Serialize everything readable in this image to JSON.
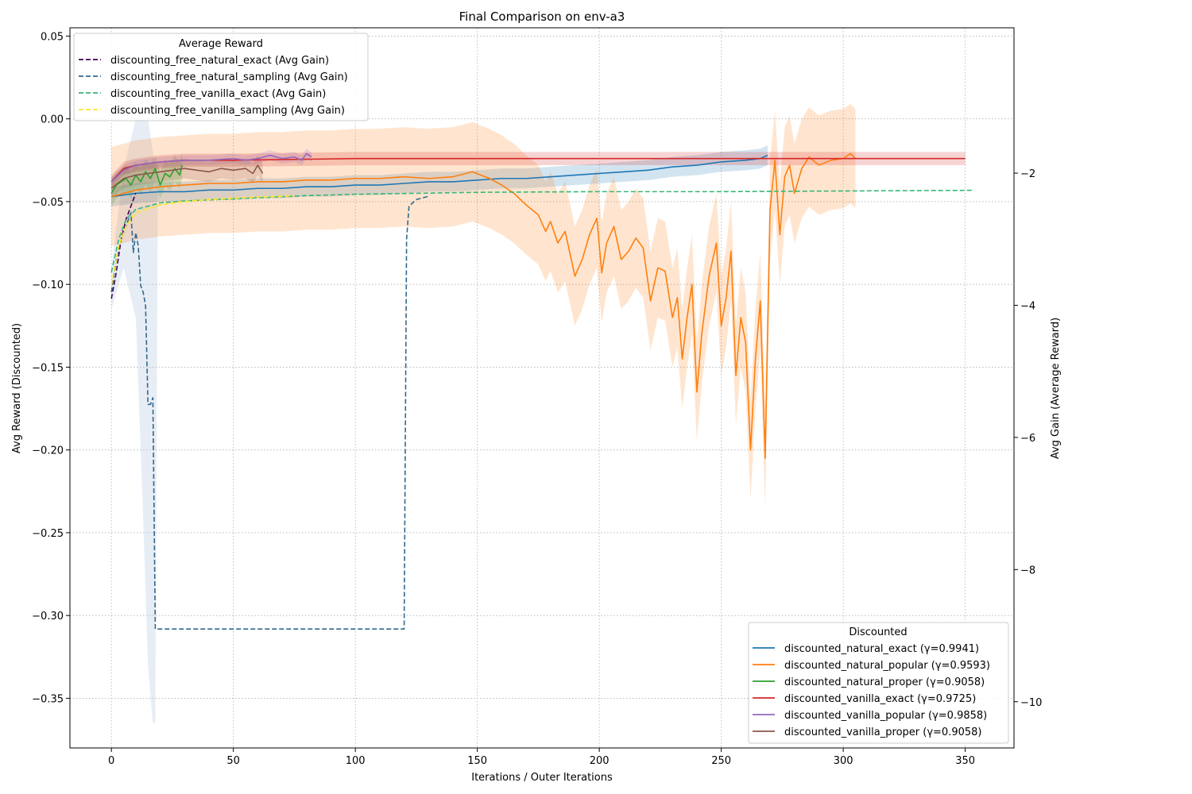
{
  "chart_data": {
    "type": "line",
    "title": "Final Comparison on env-a3",
    "xlabel": "Iterations / Outer Iterations",
    "ylabel_left": "Avg Reward (Discounted)",
    "ylabel_right": "Avg Gain (Average Reward)",
    "xlim": [
      -17,
      370
    ],
    "ylim_left": [
      -0.38,
      0.055
    ],
    "ylim_right": [
      -10.7,
      0.2
    ],
    "x_ticks": [
      0,
      50,
      100,
      150,
      200,
      250,
      300,
      350
    ],
    "y_ticks_left": [
      0.05,
      0.0,
      -0.05,
      -0.1,
      -0.15,
      -0.2,
      -0.25,
      -0.3,
      -0.35
    ],
    "y_tick_labels_left": [
      "0.05",
      "0.00",
      "−0.05",
      "−0.10",
      "−0.15",
      "−0.20",
      "−0.25",
      "−0.30",
      "−0.35"
    ],
    "y_ticks_right": [
      -2,
      -4,
      -6,
      -8,
      -10
    ],
    "y_tick_labels_right": [
      "−2",
      "−4",
      "−6",
      "−8",
      "−10"
    ],
    "x_tick_labels": [
      "0",
      "50",
      "100",
      "150",
      "200",
      "250",
      "300",
      "350"
    ],
    "grid": true,
    "legend_discounted": {
      "title": "Discounted",
      "placement": "lower-right",
      "entries": [
        "discounted_natural_exact (γ=0.9941)",
        "discounted_natural_popular (γ=0.9593)",
        "discounted_natural_proper (γ=0.9058)",
        "discounted_vanilla_exact (γ=0.9725)",
        "discounted_vanilla_popular (γ=0.9858)",
        "discounted_vanilla_proper (γ=0.9058)"
      ]
    },
    "legend_average": {
      "title": "Average Reward",
      "placement": "upper-left",
      "entries": [
        "discounting_free_natural_exact (Avg Gain)",
        "discounting_free_natural_sampling (Avg Gain)",
        "discounting_free_vanilla_exact (Avg Gain)",
        "discounting_free_vanilla_sampling (Avg Gain)"
      ]
    },
    "series": [
      {
        "axis": "left",
        "color": "#1f77b4",
        "style": "solid",
        "band": 0.006,
        "points": [
          [
            0,
            -0.047
          ],
          [
            5,
            -0.046
          ],
          [
            10,
            -0.045
          ],
          [
            20,
            -0.044
          ],
          [
            30,
            -0.044
          ],
          [
            40,
            -0.043
          ],
          [
            50,
            -0.043
          ],
          [
            60,
            -0.042
          ],
          [
            70,
            -0.042
          ],
          [
            80,
            -0.041
          ],
          [
            90,
            -0.041
          ],
          [
            100,
            -0.04
          ],
          [
            110,
            -0.04
          ],
          [
            120,
            -0.039
          ],
          [
            130,
            -0.038
          ],
          [
            140,
            -0.038
          ],
          [
            150,
            -0.037
          ],
          [
            160,
            -0.036
          ],
          [
            170,
            -0.036
          ],
          [
            180,
            -0.035
          ],
          [
            190,
            -0.034
          ],
          [
            200,
            -0.033
          ],
          [
            210,
            -0.032
          ],
          [
            220,
            -0.031
          ],
          [
            230,
            -0.029
          ],
          [
            240,
            -0.028
          ],
          [
            250,
            -0.026
          ],
          [
            260,
            -0.025
          ],
          [
            266,
            -0.024
          ],
          [
            269,
            -0.022
          ]
        ]
      },
      {
        "axis": "left",
        "color": "#ff7f0e",
        "style": "solid",
        "band": 0.03,
        "points": [
          [
            0,
            -0.047
          ],
          [
            10,
            -0.043
          ],
          [
            20,
            -0.041
          ],
          [
            30,
            -0.04
          ],
          [
            40,
            -0.039
          ],
          [
            50,
            -0.039
          ],
          [
            60,
            -0.038
          ],
          [
            70,
            -0.038
          ],
          [
            80,
            -0.037
          ],
          [
            90,
            -0.037
          ],
          [
            100,
            -0.036
          ],
          [
            110,
            -0.036
          ],
          [
            120,
            -0.035
          ],
          [
            130,
            -0.036
          ],
          [
            140,
            -0.035
          ],
          [
            148,
            -0.032
          ],
          [
            155,
            -0.036
          ],
          [
            160,
            -0.04
          ],
          [
            165,
            -0.045
          ],
          [
            170,
            -0.052
          ],
          [
            175,
            -0.058
          ],
          [
            178,
            -0.068
          ],
          [
            180,
            -0.062
          ],
          [
            183,
            -0.075
          ],
          [
            186,
            -0.068
          ],
          [
            190,
            -0.095
          ],
          [
            193,
            -0.085
          ],
          [
            196,
            -0.07
          ],
          [
            199,
            -0.06
          ],
          [
            201,
            -0.093
          ],
          [
            203,
            -0.075
          ],
          [
            206,
            -0.065
          ],
          [
            209,
            -0.085
          ],
          [
            212,
            -0.08
          ],
          [
            215,
            -0.072
          ],
          [
            218,
            -0.078
          ],
          [
            221,
            -0.11
          ],
          [
            224,
            -0.09
          ],
          [
            227,
            -0.092
          ],
          [
            230,
            -0.12
          ],
          [
            232,
            -0.108
          ],
          [
            234,
            -0.145
          ],
          [
            236,
            -0.12
          ],
          [
            238,
            -0.1
          ],
          [
            240,
            -0.165
          ],
          [
            242,
            -0.13
          ],
          [
            245,
            -0.095
          ],
          [
            248,
            -0.075
          ],
          [
            250,
            -0.125
          ],
          [
            252,
            -0.108
          ],
          [
            254,
            -0.08
          ],
          [
            256,
            -0.155
          ],
          [
            258,
            -0.12
          ],
          [
            260,
            -0.135
          ],
          [
            262,
            -0.2
          ],
          [
            264,
            -0.145
          ],
          [
            266,
            -0.11
          ],
          [
            268,
            -0.205
          ],
          [
            270,
            -0.055
          ],
          [
            272,
            -0.025
          ],
          [
            274,
            -0.07
          ],
          [
            276,
            -0.035
          ],
          [
            278,
            -0.028
          ],
          [
            280,
            -0.045
          ],
          [
            283,
            -0.03
          ],
          [
            286,
            -0.023
          ],
          [
            290,
            -0.028
          ],
          [
            295,
            -0.025
          ],
          [
            300,
            -0.024
          ],
          [
            303,
            -0.021
          ],
          [
            305,
            -0.024
          ]
        ]
      },
      {
        "axis": "left",
        "color": "#2ca02c",
        "style": "solid",
        "band": 0.008,
        "points": [
          [
            0,
            -0.045
          ],
          [
            2,
            -0.04
          ],
          [
            4,
            -0.038
          ],
          [
            6,
            -0.036
          ],
          [
            8,
            -0.04
          ],
          [
            10,
            -0.034
          ],
          [
            12,
            -0.038
          ],
          [
            14,
            -0.032
          ],
          [
            16,
            -0.036
          ],
          [
            18,
            -0.03
          ],
          [
            20,
            -0.04
          ],
          [
            22,
            -0.033
          ],
          [
            24,
            -0.035
          ],
          [
            26,
            -0.03
          ],
          [
            28,
            -0.034
          ],
          [
            29,
            -0.028
          ]
        ]
      },
      {
        "axis": "left",
        "color": "#d62728",
        "style": "solid",
        "band": 0.004,
        "points": [
          [
            0,
            -0.038
          ],
          [
            5,
            -0.03
          ],
          [
            10,
            -0.028
          ],
          [
            20,
            -0.026
          ],
          [
            30,
            -0.025
          ],
          [
            50,
            -0.025
          ],
          [
            100,
            -0.024
          ],
          [
            150,
            -0.024
          ],
          [
            200,
            -0.024
          ],
          [
            250,
            -0.024
          ],
          [
            300,
            -0.024
          ],
          [
            350,
            -0.024
          ]
        ]
      },
      {
        "axis": "left",
        "color": "#9467bd",
        "style": "solid",
        "band": 0.003,
        "points": [
          [
            0,
            -0.038
          ],
          [
            5,
            -0.031
          ],
          [
            10,
            -0.028
          ],
          [
            15,
            -0.027
          ],
          [
            20,
            -0.026
          ],
          [
            30,
            -0.025
          ],
          [
            40,
            -0.025
          ],
          [
            50,
            -0.024
          ],
          [
            55,
            -0.025
          ],
          [
            60,
            -0.024
          ],
          [
            65,
            -0.022
          ],
          [
            70,
            -0.024
          ],
          [
            75,
            -0.023
          ],
          [
            78,
            -0.025
          ],
          [
            80,
            -0.021
          ],
          [
            82,
            -0.023
          ]
        ]
      },
      {
        "axis": "left",
        "color": "#8c564b",
        "style": "solid",
        "band": 0.006,
        "points": [
          [
            0,
            -0.042
          ],
          [
            5,
            -0.036
          ],
          [
            10,
            -0.034
          ],
          [
            15,
            -0.033
          ],
          [
            20,
            -0.032
          ],
          [
            25,
            -0.031
          ],
          [
            30,
            -0.03
          ],
          [
            35,
            -0.031
          ],
          [
            40,
            -0.032
          ],
          [
            45,
            -0.03
          ],
          [
            50,
            -0.031
          ],
          [
            55,
            -0.03
          ],
          [
            58,
            -0.033
          ],
          [
            60,
            -0.028
          ],
          [
            62,
            -0.033
          ]
        ]
      },
      {
        "axis": "right",
        "color": "#440154",
        "style": "dashed",
        "band": 0,
        "points": [
          [
            0,
            -3.9
          ],
          [
            2,
            -3.5
          ],
          [
            4,
            -3.0
          ],
          [
            6,
            -2.7
          ],
          [
            8,
            -2.5
          ],
          [
            10,
            -2.3
          ]
        ]
      },
      {
        "axis": "right",
        "color": "#31688e",
        "style": "dashed",
        "band": 0,
        "points": [
          [
            0,
            -3.8
          ],
          [
            2,
            -3.3
          ],
          [
            4,
            -3.0
          ],
          [
            6,
            -2.8
          ],
          [
            8,
            -2.6
          ],
          [
            9,
            -3.2
          ],
          [
            10,
            -2.9
          ],
          [
            11,
            -3.1
          ],
          [
            12,
            -3.7
          ],
          [
            13,
            -3.8
          ],
          [
            14,
            -4.0
          ],
          [
            15,
            -5.5
          ],
          [
            16,
            -5.5
          ],
          [
            17,
            -5.4
          ],
          [
            18,
            -8.9
          ],
          [
            120,
            -8.9
          ],
          [
            121,
            -3.0
          ],
          [
            122,
            -2.5
          ],
          [
            125,
            -2.4
          ],
          [
            130,
            -2.35
          ]
        ]
      },
      {
        "axis": "right",
        "color": "#35b779",
        "style": "dashed",
        "band": 0,
        "points": [
          [
            0,
            -3.5
          ],
          [
            3,
            -3.0
          ],
          [
            6,
            -2.7
          ],
          [
            10,
            -2.55
          ],
          [
            20,
            -2.45
          ],
          [
            30,
            -2.42
          ],
          [
            50,
            -2.39
          ],
          [
            80,
            -2.34
          ],
          [
            100,
            -2.32
          ],
          [
            150,
            -2.29
          ],
          [
            200,
            -2.28
          ],
          [
            250,
            -2.28
          ],
          [
            300,
            -2.27
          ],
          [
            353,
            -2.26
          ]
        ]
      },
      {
        "axis": "right",
        "color": "#fde725",
        "style": "dashed",
        "band": 0,
        "points": [
          [
            0,
            -3.7
          ],
          [
            3,
            -3.1
          ],
          [
            6,
            -2.8
          ],
          [
            10,
            -2.6
          ],
          [
            20,
            -2.48
          ],
          [
            30,
            -2.43
          ],
          [
            40,
            -2.4
          ],
          [
            50,
            -2.38
          ],
          [
            60,
            -2.36
          ],
          [
            70,
            -2.35
          ],
          [
            75,
            -2.34
          ]
        ]
      }
    ],
    "extra_bands": [
      {
        "axis": "left",
        "color": "#b0c4de",
        "opacity": 0.3,
        "upper": [
          [
            0,
            -0.09
          ],
          [
            5,
            -0.03
          ],
          [
            10,
            0.0
          ],
          [
            15,
            0.0
          ],
          [
            18,
            -0.03
          ],
          [
            19,
            -0.04
          ]
        ],
        "lower": [
          [
            0,
            -0.115
          ],
          [
            5,
            -0.09
          ],
          [
            10,
            -0.12
          ],
          [
            13,
            -0.24
          ],
          [
            15,
            -0.33
          ],
          [
            17,
            -0.365
          ],
          [
            18,
            -0.365
          ],
          [
            19,
            -0.05
          ]
        ]
      }
    ]
  }
}
